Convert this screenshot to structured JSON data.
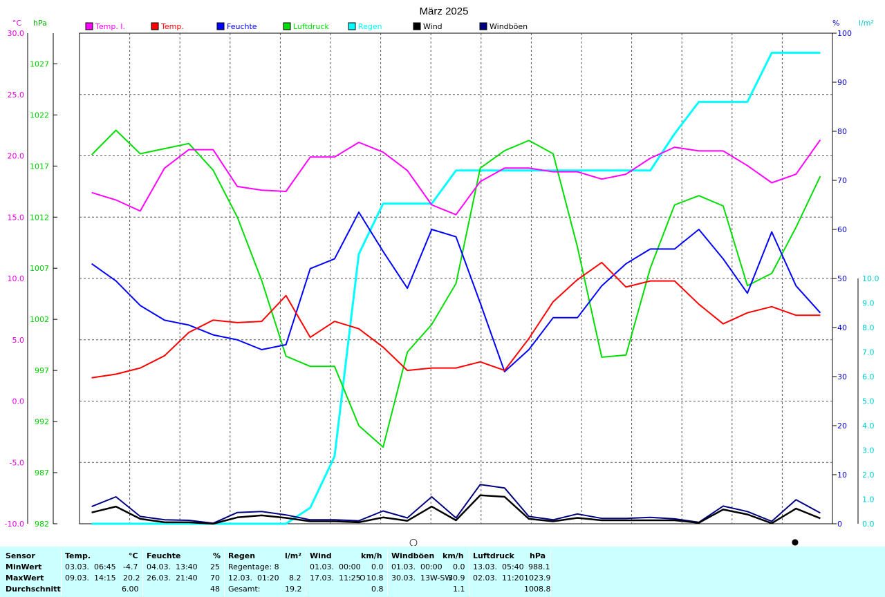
{
  "title": "März 2025",
  "axes": {
    "temp_unit": "°C",
    "pressure_unit": "hPa",
    "humidity_unit": "%",
    "rain_unit": "l/m²",
    "temp_ticks": [
      "30.0",
      "25.0",
      "20.0",
      "15.0",
      "10.0",
      "5.0",
      "0.0",
      "-5.0",
      "-10.0"
    ],
    "pressure_ticks": [
      "1027",
      "1022",
      "1017",
      "1012",
      "1007",
      "1002",
      "997",
      "992",
      "987",
      "982"
    ],
    "humidity_ticks": [
      "100",
      "90",
      "80",
      "70",
      "60",
      "50",
      "40",
      "30",
      "20",
      "10",
      "0"
    ],
    "rain_ticks": [
      "10.0",
      "9.0",
      "8.0",
      "7.0",
      "6.0",
      "5.0",
      "4.0",
      "3.0",
      "2.0",
      "1.0",
      "0.0"
    ]
  },
  "legend": [
    {
      "label": "Temp. I.",
      "color": "#ff00ff"
    },
    {
      "label": "Temp.",
      "color": "#ff0000"
    },
    {
      "label": "Feuchte",
      "color": "#0000ff"
    },
    {
      "label": "Luftdruck",
      "color": "#00dd00"
    },
    {
      "label": "Regen",
      "color": "#00ffff"
    },
    {
      "label": "Wind",
      "color": "#000000"
    },
    {
      "label": "Windböen",
      "color": "#000080"
    }
  ],
  "chart_data": {
    "type": "line",
    "title": "März 2025",
    "x": [
      1,
      2,
      3,
      4,
      5,
      6,
      7,
      8,
      9,
      10,
      11,
      12,
      13,
      14,
      15,
      16,
      17,
      18,
      19,
      20,
      21,
      22,
      23,
      24,
      25,
      26,
      27,
      28,
      29,
      30,
      31
    ],
    "xlim": [
      0.5,
      31.5
    ],
    "axes_ranges": {
      "temp": [
        -10,
        30
      ],
      "pressure": [
        982,
        1030
      ],
      "humidity": [
        0,
        100
      ],
      "rain": [
        0,
        20
      ]
    },
    "grid": true,
    "legend_position": "top",
    "series": [
      {
        "name": "Temp. I.",
        "axis": "temp",
        "color": "#ff00ff",
        "values": [
          17.0,
          16.4,
          15.5,
          19.0,
          20.5,
          20.5,
          17.5,
          17.2,
          17.1,
          19.9,
          19.9,
          21.1,
          20.3,
          18.8,
          16.0,
          15.2,
          17.9,
          19.0,
          19.0,
          18.7,
          18.7,
          18.1,
          18.5,
          19.8,
          20.7,
          20.4,
          20.4,
          19.2,
          17.8,
          18.5,
          21.3
        ]
      },
      {
        "name": "Temp.",
        "axis": "temp",
        "color": "#ff0000",
        "values": [
          1.9,
          2.2,
          2.7,
          3.7,
          5.6,
          6.6,
          6.4,
          6.5,
          8.6,
          5.2,
          6.5,
          5.9,
          4.4,
          2.5,
          2.7,
          2.7,
          3.2,
          2.5,
          5.1,
          8.1,
          9.9,
          11.3,
          9.3,
          9.8,
          9.8,
          7.9,
          6.3,
          7.2,
          7.7,
          7.0,
          7.0
        ]
      },
      {
        "name": "Feuchte",
        "axis": "humidity",
        "color": "#0000ff",
        "values": [
          53,
          49.5,
          44.5,
          41.5,
          40.5,
          38.5,
          37.5,
          35.5,
          36.5,
          52,
          54,
          63.5,
          55.5,
          48,
          60,
          58.5,
          45,
          31,
          35.5,
          42,
          42,
          48.5,
          53,
          56,
          56,
          60,
          54,
          47,
          59.5,
          48.5,
          43
        ]
      },
      {
        "name": "Luftdruck",
        "axis": "pressure",
        "color": "#00dd00",
        "values": [
          1018.1,
          1020.5,
          1018.2,
          1018.7,
          1019.2,
          1016.6,
          1012.0,
          1005.8,
          998.4,
          997.4,
          997.4,
          991.6,
          989.5,
          998.8,
          1001.5,
          1005.5,
          1016.8,
          1018.5,
          1019.5,
          1018.2,
          1009.1,
          998.3,
          998.5,
          1007.0,
          1013.2,
          1014.1,
          1013.1,
          1005.3,
          1006.5,
          1011.0,
          1016.0
        ]
      },
      {
        "name": "Regen",
        "axis": "rain",
        "color": "#00ffff",
        "values": [
          0,
          0,
          0,
          0,
          0,
          0,
          0,
          0,
          0,
          0.65,
          2.75,
          11.0,
          13.05,
          13.05,
          13.05,
          14.4,
          14.4,
          14.4,
          14.4,
          14.4,
          14.4,
          14.4,
          14.4,
          14.4,
          15.9,
          17.2,
          17.2,
          17.2,
          19.2,
          19.2,
          19.2
        ]
      },
      {
        "name": "Wind",
        "axis": "humidity",
        "color": "#000000",
        "values": [
          2.3,
          3.5,
          1.0,
          0.3,
          0.3,
          0,
          1.3,
          1.7,
          1.2,
          0.5,
          0.5,
          0.3,
          1.3,
          0.6,
          3.5,
          0.7,
          5.8,
          5.5,
          1.0,
          0.5,
          1.2,
          0.7,
          0.7,
          0.7,
          0.7,
          0.2,
          2.9,
          1.9,
          0.1,
          3.1,
          1.1
        ]
      },
      {
        "name": "Windböen",
        "axis": "humidity",
        "color": "#000080",
        "values": [
          3.5,
          5.5,
          1.5,
          0.8,
          0.7,
          0.1,
          2.3,
          2.5,
          1.8,
          0.8,
          0.8,
          0.6,
          2.6,
          1.2,
          5.5,
          1.2,
          8.0,
          7.3,
          1.5,
          0.8,
          2.0,
          1.1,
          1.1,
          1.3,
          1.0,
          0.3,
          3.6,
          2.5,
          0.5,
          4.9,
          2.2
        ]
      }
    ]
  },
  "moon": {
    "full": "○",
    "new": "●"
  },
  "stats": {
    "header": {
      "sensor": "Sensor",
      "temp": "Temp.",
      "temp_unit": "°C",
      "feuchte": "Feuchte",
      "feuchte_unit": "%",
      "regen": "Regen",
      "regen_unit": "l/m²",
      "wind": "Wind",
      "wind_unit": "km/h",
      "boen": "Windböen",
      "boen_unit": "km/h",
      "druck": "Luftdruck",
      "druck_unit": "hPa"
    },
    "labels": {
      "min": "MinWert",
      "max": "MaxWert",
      "avg": "Durchschnitt"
    },
    "temp": {
      "min_date": "03.03.  06:45",
      "min_val": "-4.7",
      "max_date": "09.03.  14:15",
      "max_val": "20.2",
      "avg_val": "6.00"
    },
    "feuchte": {
      "min_date": "04.03.  13:40",
      "min_val": "25",
      "max_date": "26.03.  21:40",
      "max_val": "70",
      "avg_val": "48"
    },
    "regen": {
      "row1": "Regentage: 8",
      "row2": "12.03.  01:20",
      "row2_val": "8.2",
      "row3": "Gesamt:",
      "row3_val": "19.2"
    },
    "wind": {
      "min_date": "01.03.  00:00",
      "min_val": "0.0",
      "max_date": "17.03.  11:25",
      "max_dir": "O",
      "max_val": "10.8",
      "avg_val": "0.8"
    },
    "boen": {
      "min_date": "01.03.  00:00",
      "min_val": "0.0",
      "max_date": "30.03.  13W-SW",
      "max_val": "30.9",
      "avg_val": "1.1"
    },
    "druck": {
      "min_date": "13.03.  05:40",
      "min_val": "988.1",
      "max_date": "02.03.  11:20",
      "max_val": "1023.9",
      "avg_val": "1008.8"
    }
  }
}
